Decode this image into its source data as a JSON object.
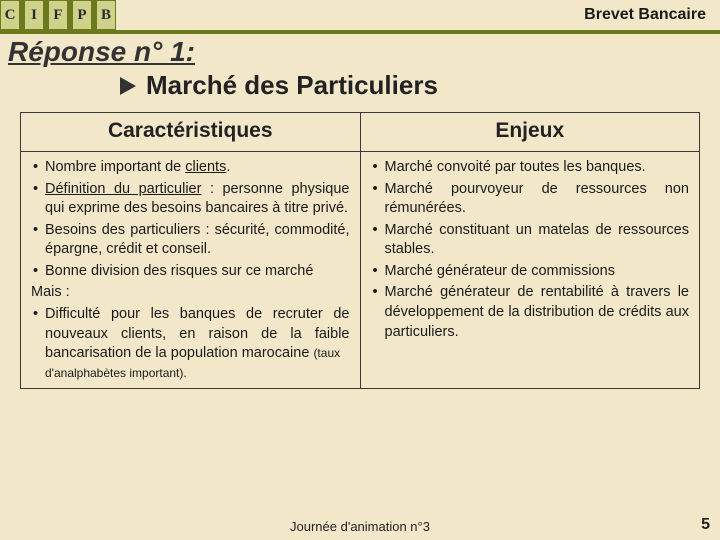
{
  "topbar": {
    "logo_letters": [
      "C",
      "I",
      "F",
      "P",
      "B"
    ],
    "title": "Brevet Bancaire"
  },
  "heading": "Réponse n° 1:",
  "subtitle": "Marché des Particuliers",
  "columns": {
    "left_header": "Caractéristiques",
    "right_header": "Enjeux"
  },
  "left_items": {
    "b1_pre": "Nombre important de ",
    "b1_u": "clients",
    "b1_post": ".",
    "b2_pre": "",
    "b2_u": "Définition du particulier",
    "b2_post": " : personne physique qui exprime des besoins bancaires à titre privé.",
    "b3": "Besoins des particuliers : sécurité, commodité, épargne, crédit et conseil.",
    "b4": "Bonne division des risques sur ce marché",
    "mais": "Mais :",
    "b5": "Difficulté pour les banques de recruter de nouveaux clients, en raison de la faible bancarisation de la population marocaine ",
    "b5_small": "(taux",
    "note": "d'analphabètes important)."
  },
  "right_items": {
    "b1": "Marché convoité par toutes les banques.",
    "b2": "Marché pourvoyeur de ressources non rémunérées.",
    "b3": "Marché constituant un matelas de ressources stables.",
    "b4": "Marché générateur de commissions",
    "b5": "Marché générateur de rentabilité à travers le développement de la distribution de crédits aux particuliers."
  },
  "footer": "Journée d'animation n°3",
  "page_number": "5",
  "colors": {
    "background": "#f2e8c9",
    "accent": "#6b7a1c",
    "logo_fill": "#cfd28a"
  }
}
